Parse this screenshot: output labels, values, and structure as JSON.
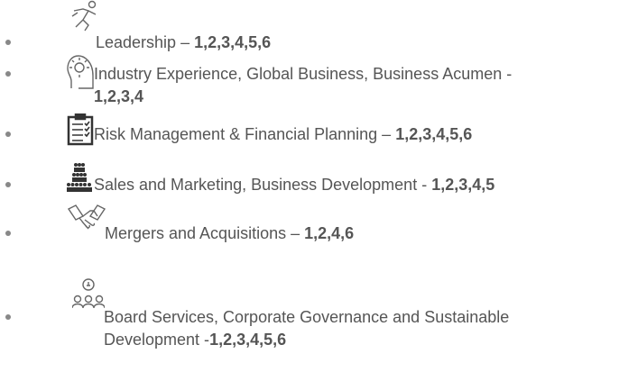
{
  "items": [
    {
      "label": "Leadership –",
      "codes": "1,2,3,4,5,6"
    },
    {
      "label": "Industry Experience, Global Business, Business Acumen -",
      "codes": "1,2,3,4"
    },
    {
      "label": "Risk Management & Financial Planning –",
      "codes": "1,2,3,4,5,6"
    },
    {
      "label": "Sales and Marketing, Business Development -",
      "codes": "1,2,3,4,5"
    },
    {
      "label": "Mergers and Acquisitions –",
      "codes": "1,2,4,6"
    },
    {
      "label": "Board Services, Corporate Governance and Sustainable Development -",
      "codes": "1,2,3,4,5,6"
    }
  ]
}
